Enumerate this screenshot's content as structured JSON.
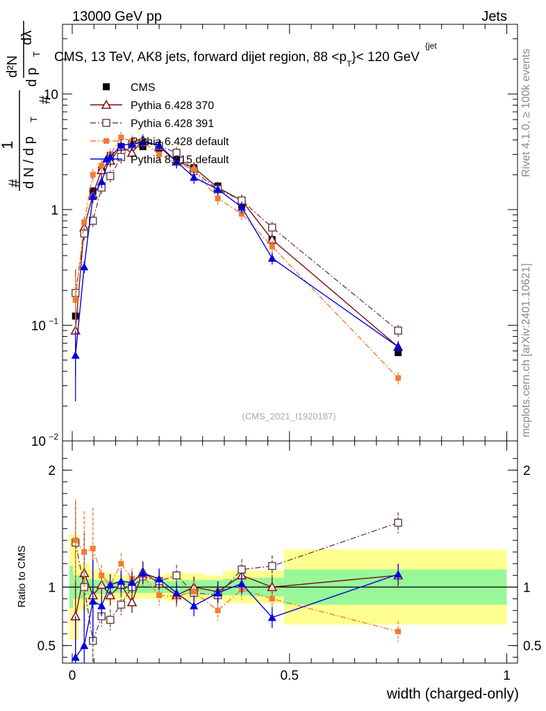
{
  "header": {
    "left": "13000 GeV pp",
    "right": "Jets",
    "title_prefix": "CMS, 13 TeV, AK8 jets, forward dijet region, 88 <",
    "title_p": "p",
    "title_sub": "T",
    "title_sup": "{jet",
    "title_suffix": "}< 120 GeV"
  },
  "side_labels": {
    "rivet": "Rivet 4.1.0, ≥ 100k events",
    "mcplots": "mcplots.cern.ch [arXiv:2401.10621]"
  },
  "analysis_id": "(CMS_2021_I1920187)",
  "ylabel_main": {
    "hash": "#",
    "one": "1",
    "dN": "d N / d p",
    "T": "T",
    "d2N": "d²N",
    "dpT": "d p",
    "dl": "dλ"
  },
  "colors": {
    "cms": "#000000",
    "py370": "#7a0d0d",
    "py391": "#6b4848",
    "pydef": "#f07c30",
    "py8": "#0000e0",
    "band_inner": "#98f898",
    "band_outer": "#ffff90"
  },
  "chart_data": [
    {
      "type": "line",
      "scale": "log",
      "xlim": [
        0,
        1
      ],
      "ylim": [
        0.01,
        40
      ],
      "yticks": [
        {
          "v": 0.01,
          "b": "10",
          "e": "−2"
        },
        {
          "v": 0.1,
          "b": "10",
          "e": "−1"
        },
        {
          "v": 1,
          "b": "1",
          "e": ""
        },
        {
          "v": 10,
          "b": "10",
          "e": ""
        }
      ],
      "x": [
        0.0075,
        0.0275,
        0.0475,
        0.0675,
        0.0875,
        0.1125,
        0.1375,
        0.1625,
        0.2,
        0.24,
        0.28,
        0.335,
        0.39,
        0.46,
        0.75
      ],
      "series": [
        {
          "name": "CMS",
          "key": "cms",
          "marker": "square_filled",
          "line": "none",
          "values": [
            0.12,
            0.63,
            1.45,
            2.2,
            2.95,
            3.5,
            3.65,
            3.5,
            3.4,
            2.8,
            2.3,
            1.6,
            1.1,
            0.55,
            0.058
          ]
        },
        {
          "name": "Pythia 6.428 370",
          "key": "py370",
          "marker": "triangle_open",
          "line": "solid",
          "values": [
            0.09,
            0.7,
            1.35,
            2.2,
            2.65,
            3.5,
            3.1,
            4.0,
            3.5,
            2.6,
            2.3,
            1.55,
            1.2,
            0.55,
            0.065
          ]
        },
        {
          "name": "Pythia 6.428 391",
          "key": "py391",
          "marker": "square_open",
          "line": "dashdot",
          "values": [
            0.19,
            0.62,
            0.8,
            1.55,
            1.95,
            2.85,
            3.65,
            3.8,
            3.55,
            3.1,
            2.15,
            1.5,
            1.2,
            0.7,
            0.09
          ]
        },
        {
          "name": "Pythia 6.428 default",
          "key": "pydef",
          "marker": "square_filled_small",
          "line": "dashdot",
          "values": [
            0.165,
            0.78,
            2.0,
            2.4,
            3.0,
            4.2,
            3.9,
            3.9,
            3.0,
            2.55,
            2.2,
            1.25,
            0.92,
            0.48,
            0.035
          ]
        },
        {
          "name": "Pythia 8.315 default",
          "key": "py8",
          "marker": "triangle_filled",
          "line": "solid",
          "values": [
            0.055,
            0.32,
            1.3,
            1.75,
            2.85,
            3.6,
            3.7,
            3.85,
            3.6,
            2.6,
            1.9,
            1.5,
            1.05,
            0.38,
            0.065
          ]
        }
      ]
    },
    {
      "type": "line",
      "scale": "linear",
      "ylabel": "Ratio to CMS",
      "xlabel": "width (charged-only)",
      "xlim": [
        0,
        1
      ],
      "ylim": [
        0.35,
        2.25
      ],
      "xticks": [
        {
          "v": 0,
          "t": "0"
        },
        {
          "v": 0.5,
          "t": "0.5"
        },
        {
          "v": 1,
          "t": "1"
        }
      ],
      "yticks": [
        {
          "v": 0.5,
          "t": "0.5"
        },
        {
          "v": 1,
          "t": "1"
        },
        {
          "v": 2,
          "t": "2"
        }
      ],
      "bands": [
        {
          "x0": 0.0,
          "x1": 0.015,
          "inner": [
            0.82,
            1.18
          ],
          "outer": [
            0.55,
            1.45
          ]
        },
        {
          "x0": 0.015,
          "x1": 0.04,
          "inner": [
            0.9,
            1.1
          ],
          "outer": [
            0.8,
            1.2
          ]
        },
        {
          "x0": 0.04,
          "x1": 0.06,
          "inner": [
            0.93,
            1.07
          ],
          "outer": [
            0.85,
            1.15
          ]
        },
        {
          "x0": 0.06,
          "x1": 0.1,
          "inner": [
            0.94,
            1.06
          ],
          "outer": [
            0.88,
            1.12
          ]
        },
        {
          "x0": 0.1,
          "x1": 0.125,
          "inner": [
            0.95,
            1.05
          ],
          "outer": [
            0.9,
            1.1
          ]
        },
        {
          "x0": 0.125,
          "x1": 0.15,
          "inner": [
            0.95,
            1.05
          ],
          "outer": [
            0.9,
            1.1
          ]
        },
        {
          "x0": 0.15,
          "x1": 0.175,
          "inner": [
            0.95,
            1.05
          ],
          "outer": [
            0.9,
            1.1
          ]
        },
        {
          "x0": 0.175,
          "x1": 0.225,
          "inner": [
            0.95,
            1.05
          ],
          "outer": [
            0.9,
            1.1
          ]
        },
        {
          "x0": 0.225,
          "x1": 0.255,
          "inner": [
            0.95,
            1.05
          ],
          "outer": [
            0.88,
            1.12
          ]
        },
        {
          "x0": 0.255,
          "x1": 0.305,
          "inner": [
            0.94,
            1.06
          ],
          "outer": [
            0.88,
            1.12
          ]
        },
        {
          "x0": 0.305,
          "x1": 0.36,
          "inner": [
            0.94,
            1.06
          ],
          "outer": [
            0.9,
            1.1
          ]
        },
        {
          "x0": 0.36,
          "x1": 0.42,
          "inner": [
            0.93,
            1.07
          ],
          "outer": [
            0.86,
            1.14
          ]
        },
        {
          "x0": 0.42,
          "x1": 0.5,
          "inner": [
            0.92,
            1.08
          ],
          "outer": [
            0.86,
            1.14
          ]
        },
        {
          "x0": 0.5,
          "x1": 1.0,
          "inner": [
            0.85,
            1.15
          ],
          "outer": [
            0.68,
            1.32
          ]
        }
      ],
      "series": [
        {
          "name": "Pythia 6.428 370",
          "key": "py370",
          "marker": "triangle_open",
          "line": "solid",
          "values": [
            0.75,
            1.12,
            0.93,
            1.02,
            0.93,
            1.02,
            0.87,
            1.13,
            1.03,
            0.93,
            1.0,
            0.96,
            1.1,
            1.0,
            1.1
          ]
        },
        {
          "name": "Pythia 6.428 391",
          "key": "py391",
          "marker": "square_open",
          "line": "dashdot",
          "values": [
            1.38,
            1.0,
            0.54,
            0.75,
            0.72,
            0.85,
            1.0,
            1.09,
            1.05,
            1.1,
            0.95,
            0.93,
            1.15,
            1.18,
            1.55
          ]
        },
        {
          "name": "Pythia 6.428 default",
          "key": "pydef",
          "marker": "square_filled_small",
          "line": "dashdot",
          "values": [
            1.4,
            1.3,
            1.33,
            1.1,
            1.02,
            1.2,
            1.07,
            1.1,
            0.93,
            0.92,
            0.96,
            0.8,
            0.98,
            0.9,
            0.62
          ]
        },
        {
          "name": "Pythia 8.315 default",
          "key": "py8",
          "marker": "triangle_filled",
          "line": "solid",
          "values": [
            0.4,
            0.5,
            0.88,
            0.84,
            1.02,
            1.05,
            1.04,
            1.12,
            1.07,
            0.95,
            0.84,
            0.95,
            1.03,
            0.74,
            1.11
          ]
        }
      ]
    }
  ],
  "legend": [
    {
      "label": "CMS",
      "key": "cms",
      "marker": "square_filled",
      "line": "none"
    },
    {
      "label": "Pythia 6.428 370",
      "key": "py370",
      "marker": "triangle_open",
      "line": "solid"
    },
    {
      "label": "Pythia 6.428 391",
      "key": "py391",
      "marker": "square_open",
      "line": "dashdot"
    },
    {
      "label": "Pythia 6.428 default",
      "key": "pydef",
      "marker": "square_filled_small",
      "line": "dashdot"
    },
    {
      "label": "Pythia 8.315 default",
      "key": "py8",
      "marker": "triangle_filled",
      "line": "solid"
    }
  ]
}
